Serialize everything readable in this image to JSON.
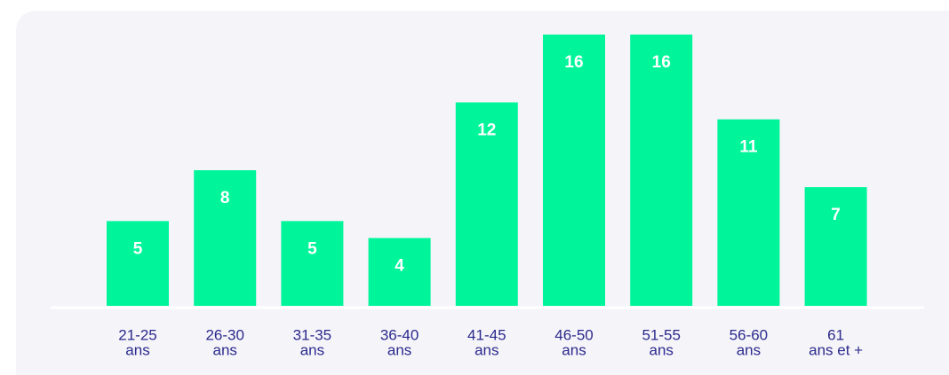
{
  "chart_data": {
    "type": "bar",
    "categories": [
      [
        "21-25",
        "ans"
      ],
      [
        "26-30",
        "ans"
      ],
      [
        "31-35",
        "ans"
      ],
      [
        "36-40",
        "ans"
      ],
      [
        "41-45",
        "ans"
      ],
      [
        "46-50",
        "ans"
      ],
      [
        "51-55",
        "ans"
      ],
      [
        "56-60",
        "ans"
      ],
      [
        "61",
        "ans et +"
      ]
    ],
    "values": [
      5,
      8,
      5,
      4,
      12,
      16,
      16,
      11,
      7
    ],
    "color": "#00f59b"
  }
}
